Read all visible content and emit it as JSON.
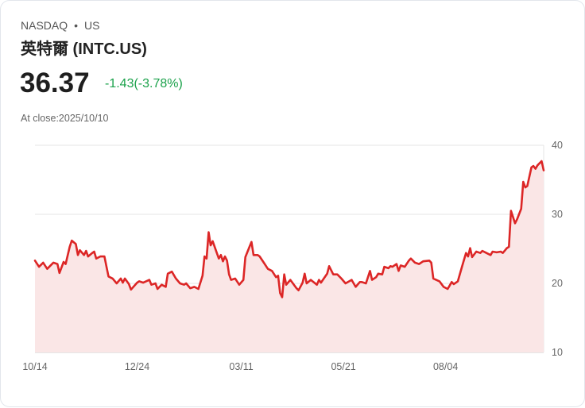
{
  "header": {
    "exchange": "NASDAQ",
    "separator": "•",
    "market": "US",
    "title": "英特爾 (INTC.US)"
  },
  "quote": {
    "price": "36.37",
    "change": "-1.43(-3.78%)",
    "close_label": "At close:2025/10/10"
  },
  "colors": {
    "line": "#dc2626",
    "fill": "#fae6e6",
    "change": "#1ba24b"
  },
  "chart_data": {
    "type": "area",
    "title": "",
    "xlabel": "",
    "ylabel": "",
    "ylim": [
      10,
      40
    ],
    "yticks": [
      {
        "v": 40,
        "label": "40"
      },
      {
        "v": 30,
        "label": "30"
      },
      {
        "v": 20,
        "label": "20"
      },
      {
        "v": 10,
        "label": "10"
      }
    ],
    "xlim": [
      0,
      249
    ],
    "xticks": [
      {
        "d": 0,
        "label": "10/14"
      },
      {
        "d": 50,
        "label": "12/24"
      },
      {
        "d": 101,
        "label": "03/11"
      },
      {
        "d": 151,
        "label": "05/21"
      },
      {
        "d": 201,
        "label": "08/04"
      }
    ],
    "points": [
      [
        0,
        23.3
      ],
      [
        2,
        22.4
      ],
      [
        4,
        23.0
      ],
      [
        6,
        22.1
      ],
      [
        9,
        23.0
      ],
      [
        11,
        22.8
      ],
      [
        12,
        21.5
      ],
      [
        14,
        23.1
      ],
      [
        15,
        22.8
      ],
      [
        17,
        25.3
      ],
      [
        18,
        26.2
      ],
      [
        20,
        25.7
      ],
      [
        21,
        24.1
      ],
      [
        22,
        24.8
      ],
      [
        24,
        24.1
      ],
      [
        25,
        24.7
      ],
      [
        26,
        23.9
      ],
      [
        28,
        24.4
      ],
      [
        29,
        24.6
      ],
      [
        30,
        23.6
      ],
      [
        32,
        23.9
      ],
      [
        34,
        23.9
      ],
      [
        35,
        22.4
      ],
      [
        36,
        21.0
      ],
      [
        38,
        20.7
      ],
      [
        40,
        20.0
      ],
      [
        42,
        20.7
      ],
      [
        43,
        20.1
      ],
      [
        44,
        20.7
      ],
      [
        46,
        19.9
      ],
      [
        47,
        19.1
      ],
      [
        50,
        20.1
      ],
      [
        51,
        20.3
      ],
      [
        53,
        20.1
      ],
      [
        56,
        20.5
      ],
      [
        57,
        19.8
      ],
      [
        59,
        20.0
      ],
      [
        60,
        19.2
      ],
      [
        62,
        19.8
      ],
      [
        64,
        19.5
      ],
      [
        65,
        21.4
      ],
      [
        67,
        21.7
      ],
      [
        69,
        20.7
      ],
      [
        71,
        20.0
      ],
      [
        73,
        19.8
      ],
      [
        74,
        20.0
      ],
      [
        76,
        19.3
      ],
      [
        78,
        19.5
      ],
      [
        80,
        19.2
      ],
      [
        82,
        21.1
      ],
      [
        83,
        23.9
      ],
      [
        84,
        23.6
      ],
      [
        85,
        27.4
      ],
      [
        86,
        25.5
      ],
      [
        87,
        26.1
      ],
      [
        89,
        24.4
      ],
      [
        90,
        23.6
      ],
      [
        91,
        24.1
      ],
      [
        92,
        23.2
      ],
      [
        93,
        23.9
      ],
      [
        94,
        23.3
      ],
      [
        95,
        21.3
      ],
      [
        96,
        20.5
      ],
      [
        98,
        20.7
      ],
      [
        100,
        19.8
      ],
      [
        102,
        20.5
      ],
      [
        103,
        23.8
      ],
      [
        105,
        25.3
      ],
      [
        106,
        26.0
      ],
      [
        107,
        24.1
      ],
      [
        109,
        24.1
      ],
      [
        110,
        23.9
      ],
      [
        112,
        23.0
      ],
      [
        114,
        22.1
      ],
      [
        116,
        21.8
      ],
      [
        118,
        20.9
      ],
      [
        119,
        21.1
      ],
      [
        120,
        18.6
      ],
      [
        121,
        18.0
      ],
      [
        122,
        21.3
      ],
      [
        123,
        19.8
      ],
      [
        125,
        20.5
      ],
      [
        128,
        19.3
      ],
      [
        129,
        19.0
      ],
      [
        131,
        20.1
      ],
      [
        132,
        21.4
      ],
      [
        133,
        20.0
      ],
      [
        135,
        20.5
      ],
      [
        138,
        19.8
      ],
      [
        139,
        20.5
      ],
      [
        140,
        20.1
      ],
      [
        143,
        21.4
      ],
      [
        144,
        22.5
      ],
      [
        146,
        21.3
      ],
      [
        148,
        21.3
      ],
      [
        150,
        20.7
      ],
      [
        152,
        20.0
      ],
      [
        155,
        20.5
      ],
      [
        157,
        19.5
      ],
      [
        159,
        20.2
      ],
      [
        160,
        20.2
      ],
      [
        162,
        20.0
      ],
      [
        164,
        21.8
      ],
      [
        165,
        20.5
      ],
      [
        167,
        20.9
      ],
      [
        168,
        21.4
      ],
      [
        170,
        21.3
      ],
      [
        171,
        22.4
      ],
      [
        173,
        22.2
      ],
      [
        174,
        22.5
      ],
      [
        175,
        22.4
      ],
      [
        177,
        22.8
      ],
      [
        178,
        21.8
      ],
      [
        179,
        22.6
      ],
      [
        181,
        22.4
      ],
      [
        183,
        23.3
      ],
      [
        184,
        23.6
      ],
      [
        186,
        23.0
      ],
      [
        188,
        22.8
      ],
      [
        190,
        23.2
      ],
      [
        193,
        23.3
      ],
      [
        194,
        23.0
      ],
      [
        195,
        20.7
      ],
      [
        198,
        20.3
      ],
      [
        200,
        19.5
      ],
      [
        202,
        19.2
      ],
      [
        204,
        20.2
      ],
      [
        205,
        19.9
      ],
      [
        207,
        20.3
      ],
      [
        209,
        22.4
      ],
      [
        211,
        24.4
      ],
      [
        212,
        23.9
      ],
      [
        213,
        25.1
      ],
      [
        214,
        23.8
      ],
      [
        216,
        24.6
      ],
      [
        218,
        24.4
      ],
      [
        219,
        24.7
      ],
      [
        221,
        24.4
      ],
      [
        223,
        24.1
      ],
      [
        224,
        24.6
      ],
      [
        226,
        24.5
      ],
      [
        228,
        24.6
      ],
      [
        229,
        24.4
      ],
      [
        231,
        25.1
      ],
      [
        232,
        25.3
      ],
      [
        233,
        30.5
      ],
      [
        235,
        28.7
      ],
      [
        236,
        29.3
      ],
      [
        238,
        30.8
      ],
      [
        239,
        34.7
      ],
      [
        240,
        33.9
      ],
      [
        241,
        34.1
      ],
      [
        243,
        36.8
      ],
      [
        244,
        37.0
      ],
      [
        245,
        36.6
      ],
      [
        246,
        37.1
      ],
      [
        248,
        37.7
      ],
      [
        249,
        36.37
      ]
    ]
  }
}
